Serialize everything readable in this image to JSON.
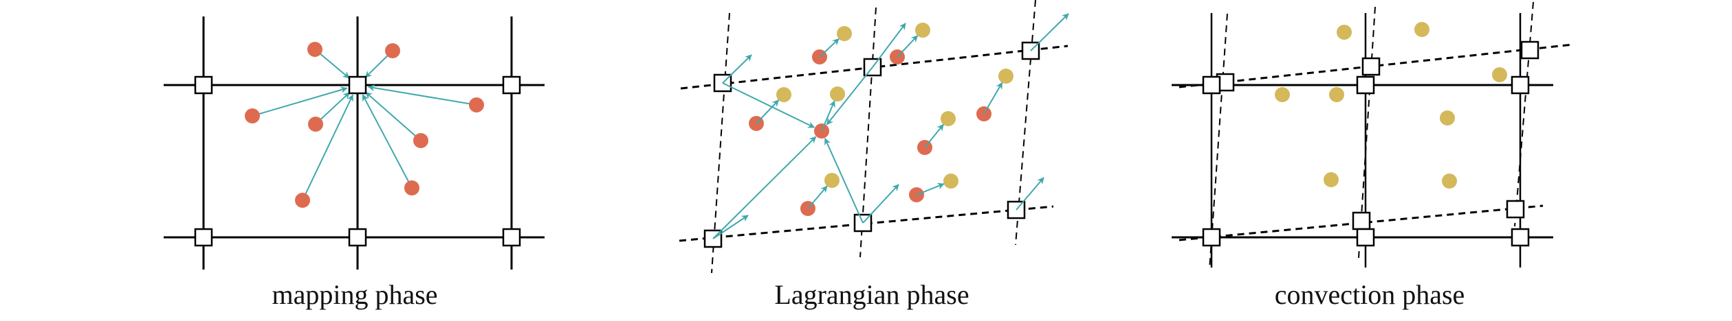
{
  "panels": [
    {
      "id": "mapping",
      "label": "mapping phase"
    },
    {
      "id": "lagrangian",
      "label": "Lagrangian phase"
    },
    {
      "id": "convection",
      "label": "convection phase"
    }
  ],
  "colors": {
    "particle_old": "#DE6B50",
    "particle_new": "#D4B85A",
    "arrow": "#3FA8AC",
    "grid": "#000000",
    "node_fill": "#ffffff"
  }
}
